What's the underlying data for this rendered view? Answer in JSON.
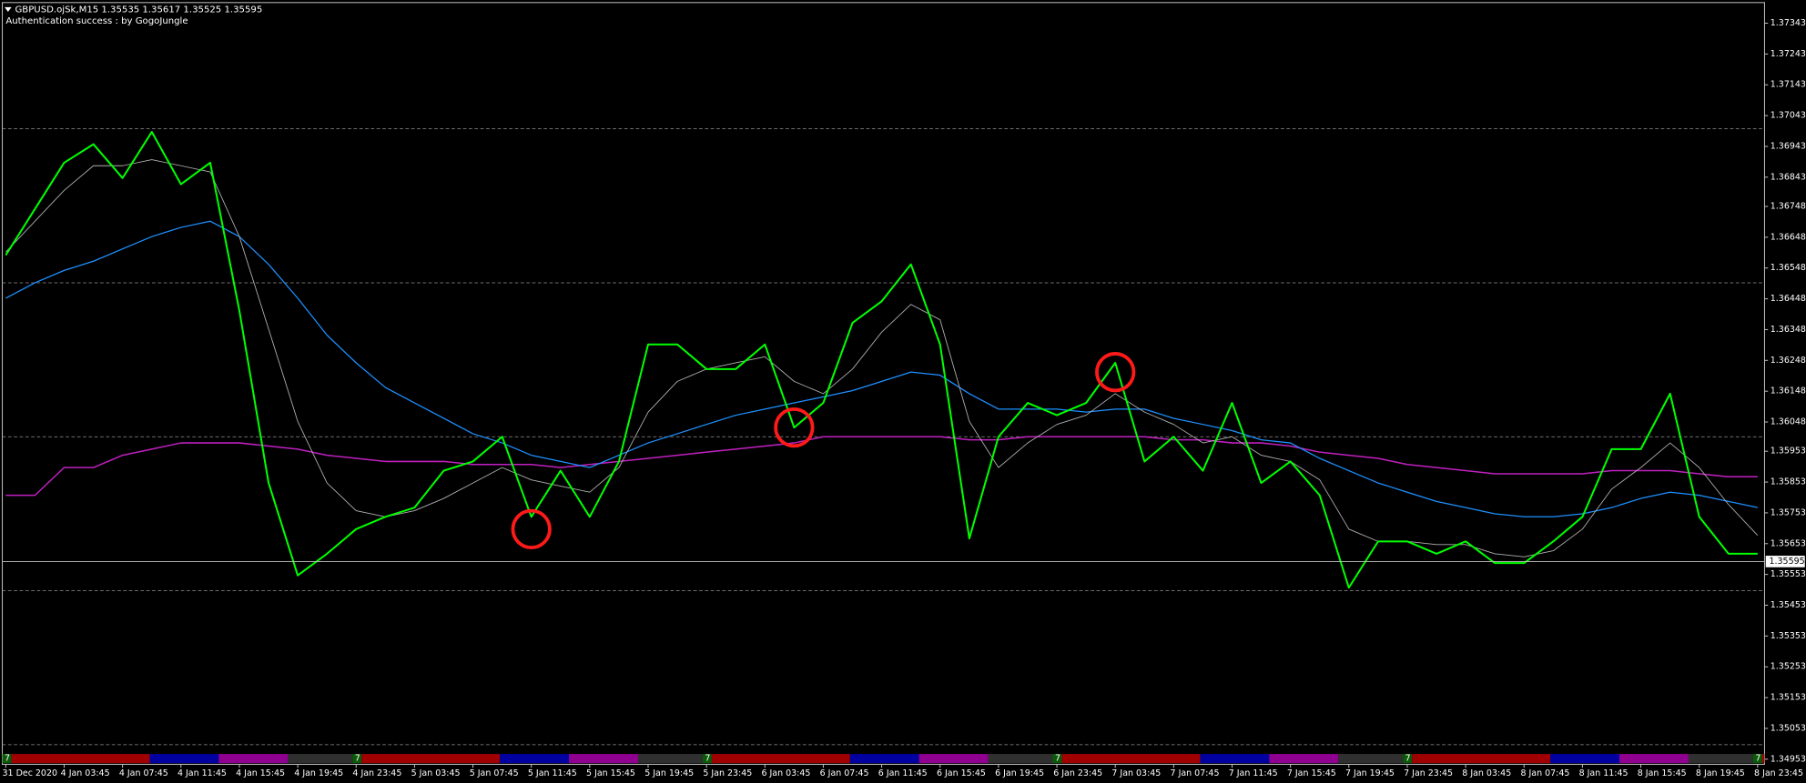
{
  "chart_data": {
    "type": "line",
    "title": "GBPUSD.ojSk,M15  1.35535 1.35617 1.35525 1.35595",
    "subtitle": "Authentication success : by GogoJungle",
    "categories": [
      "31 Dec 2020",
      null,
      "4 Jan 03:45",
      null,
      "4 Jan 07:45",
      null,
      "4 Jan 11:45",
      null,
      "4 Jan 15:45",
      null,
      "4 Jan 19:45",
      null,
      "4 Jan 23:45",
      null,
      "5 Jan 03:45",
      null,
      "5 Jan 07:45",
      null,
      "5 Jan 11:45",
      null,
      "5 Jan 15:45",
      null,
      "5 Jan 19:45",
      null,
      "5 Jan 23:45",
      null,
      "6 Jan 03:45",
      null,
      "6 Jan 07:45",
      null,
      "6 Jan 11:45",
      null,
      "6 Jan 15:45",
      null,
      "6 Jan 19:45",
      null,
      "6 Jan 23:45",
      null,
      "7 Jan 03:45",
      null,
      "7 Jan 07:45",
      null,
      "7 Jan 11:45",
      null,
      "7 Jan 15:45",
      null,
      "7 Jan 19:45",
      null,
      "7 Jan 23:45",
      null,
      "8 Jan 03:45",
      null,
      "8 Jan 07:45",
      null,
      "8 Jan 11:45",
      null,
      "8 Jan 15:45",
      null,
      "8 Jan 19:45",
      null,
      "8 Jan 23:45"
    ],
    "series": [
      {
        "color": "#00ff00",
        "width": 1.6,
        "values": [
          1.3659,
          1.3674,
          1.3689,
          1.3695,
          1.3684,
          1.3699,
          1.3682,
          1.3689,
          1.3641,
          1.3585,
          1.3555,
          1.3562,
          1.357,
          1.3574,
          1.3577,
          1.3589,
          1.3592,
          1.36,
          1.3574,
          1.3589,
          1.3574,
          1.3592,
          1.363,
          1.363,
          1.3622,
          1.3622,
          1.363,
          1.3603,
          1.3611,
          1.3637,
          1.3644,
          1.3656,
          1.363,
          1.3567,
          1.36,
          1.3611,
          1.3607,
          1.3611,
          1.3624,
          1.3592,
          1.36,
          1.3589,
          1.3611,
          1.3585,
          1.3592,
          1.3581,
          1.3551,
          1.3566,
          1.3566,
          1.3562,
          1.3566,
          1.3559,
          1.3559,
          1.3566,
          1.3574,
          1.3596,
          1.3596,
          1.3614,
          1.3574,
          1.3562,
          1.3562
        ]
      },
      {
        "color": "#b0b0b0",
        "width": 0.7,
        "values": [
          1.366,
          1.367,
          1.368,
          1.3688,
          1.3688,
          1.369,
          1.3688,
          1.3686,
          1.3665,
          1.3635,
          1.3605,
          1.3585,
          1.3576,
          1.3574,
          1.3576,
          1.358,
          1.3585,
          1.359,
          1.3586,
          1.3584,
          1.3582,
          1.359,
          1.3608,
          1.3618,
          1.3622,
          1.3624,
          1.3626,
          1.3618,
          1.3614,
          1.3622,
          1.3634,
          1.3643,
          1.3638,
          1.3605,
          1.359,
          1.3598,
          1.3604,
          1.3607,
          1.3614,
          1.3608,
          1.3604,
          1.3598,
          1.36,
          1.3594,
          1.3592,
          1.3586,
          1.357,
          1.3566,
          1.3566,
          1.3565,
          1.3565,
          1.3562,
          1.3561,
          1.3563,
          1.357,
          1.3583,
          1.359,
          1.3598,
          1.359,
          1.3578,
          1.3568
        ]
      },
      {
        "color": "#1e90ff",
        "width": 1,
        "values": [
          1.3645,
          1.365,
          1.3654,
          1.3657,
          1.3661,
          1.3665,
          1.3668,
          1.367,
          1.3665,
          1.3656,
          1.3645,
          1.3633,
          1.3624,
          1.3616,
          1.3611,
          1.3606,
          1.3601,
          1.3598,
          1.3594,
          1.3592,
          1.359,
          1.3594,
          1.3598,
          1.3601,
          1.3604,
          1.3607,
          1.3609,
          1.3611,
          1.3613,
          1.3615,
          1.3618,
          1.3621,
          1.362,
          1.3614,
          1.3609,
          1.3609,
          1.3609,
          1.3608,
          1.3609,
          1.3609,
          1.3606,
          1.3604,
          1.3602,
          1.3599,
          1.3598,
          1.3593,
          1.3589,
          1.3585,
          1.3582,
          1.3579,
          1.3577,
          1.3575,
          1.3574,
          1.3574,
          1.3575,
          1.3577,
          1.358,
          1.3582,
          1.3581,
          1.3579,
          1.3577
        ]
      },
      {
        "color": "#c020c0",
        "width": 1.2,
        "values": [
          1.3581,
          1.3581,
          1.359,
          1.359,
          1.3594,
          1.3596,
          1.3598,
          1.3598,
          1.3598,
          1.3597,
          1.3596,
          1.3594,
          1.3593,
          1.3592,
          1.3592,
          1.3592,
          1.3591,
          1.3591,
          1.3591,
          1.359,
          1.3591,
          1.3592,
          1.3593,
          1.3594,
          1.3595,
          1.3596,
          1.3597,
          1.3598,
          1.36,
          1.36,
          1.36,
          1.36,
          1.36,
          1.3599,
          1.3599,
          1.36,
          1.36,
          1.36,
          1.36,
          1.36,
          1.3599,
          1.3599,
          1.3598,
          1.3598,
          1.3597,
          1.3595,
          1.3594,
          1.3593,
          1.3591,
          1.359,
          1.3589,
          1.3588,
          1.3588,
          1.3588,
          1.3588,
          1.3589,
          1.3589,
          1.3589,
          1.3588,
          1.3587,
          1.3587
        ]
      }
    ],
    "ylim": [
      1.3497,
      1.3741
    ],
    "yticks": [
      1.37343,
      1.37243,
      1.37143,
      1.37043,
      1.36943,
      1.36843,
      1.36748,
      1.36648,
      1.36548,
      1.36448,
      1.36348,
      1.36248,
      1.36148,
      1.36048,
      1.35953,
      1.35853,
      1.35753,
      1.35653,
      1.35553,
      1.35453,
      1.35353,
      1.35253,
      1.35153,
      1.35053,
      1.34953
    ],
    "levels": [
      1.37,
      1.365,
      1.36,
      1.355,
      1.35
    ],
    "last_price": 1.35595,
    "signals": [
      {
        "at": 18,
        "value": 1.357,
        "color": "#ff1a1a"
      },
      {
        "at": 27,
        "value": 1.3603,
        "color": "#ff1a1a"
      },
      {
        "at": 38,
        "value": 1.3621,
        "color": "#ff1a1a"
      }
    ],
    "session_labels": [
      "7",
      "7",
      "7",
      "7",
      "7",
      "7"
    ]
  }
}
